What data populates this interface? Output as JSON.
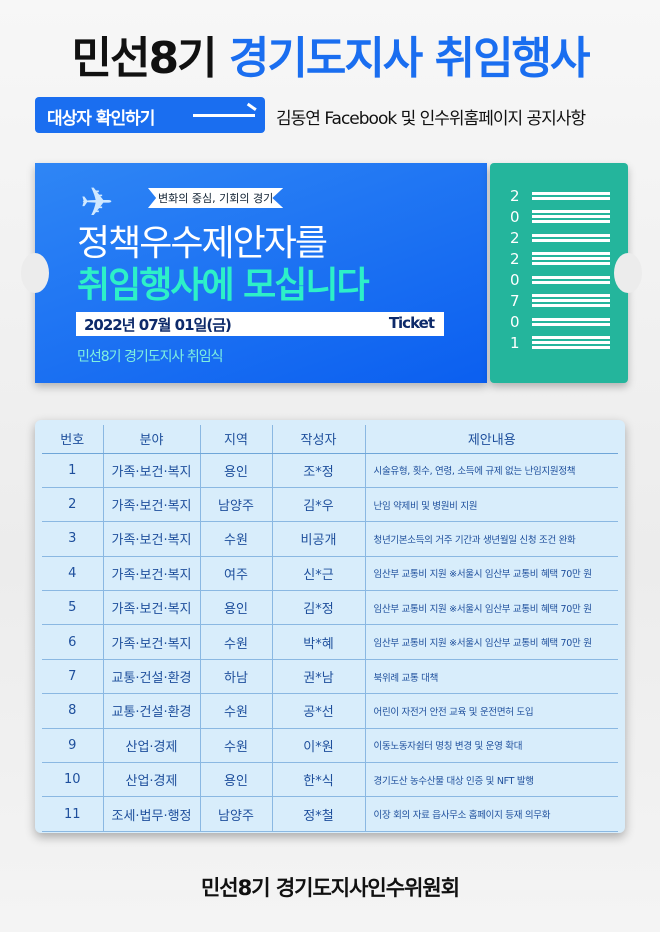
{
  "title": {
    "part1": "민선8기",
    "part2": "경기도지사 취임행사"
  },
  "cta": {
    "label": "대상자 확인하기"
  },
  "notice": "김동연 Facebook 및 인수위홈페이지 공지사항",
  "ticket": {
    "banner": "변화의 중심, 기회의 경기",
    "headline1": "정책우수제안자를",
    "headline2": "취임행사에 모십니다",
    "date": "2022년 07월 01일(금)",
    "ticket_label": "Ticket",
    "subtitle": "민선8기 경기도지사 취임식",
    "stub_digits": [
      "2",
      "0",
      "2",
      "2",
      "0",
      "7",
      "0",
      "1"
    ]
  },
  "table": {
    "headers": [
      "번호",
      "분야",
      "지역",
      "작성자",
      "제안내용"
    ],
    "rows": [
      [
        "1",
        "가족·보건·복지",
        "용인",
        "조*정",
        "시술유형, 횟수, 연령, 소득에 규제 없는 난임지원정책"
      ],
      [
        "2",
        "가족·보건·복지",
        "남양주",
        "김*우",
        "난임 약제비 및 병원비 지원"
      ],
      [
        "3",
        "가족·보건·복지",
        "수원",
        "비공개",
        "청년기본소득의 거주 기간과 생년월일 신청 조건 완화"
      ],
      [
        "4",
        "가족·보건·복지",
        "여주",
        "신*근",
        "임산부 교통비 지원 ※서울시 임산부 교통비 혜택 70만 원"
      ],
      [
        "5",
        "가족·보건·복지",
        "용인",
        "김*정",
        "임산부 교통비 지원 ※서울시 임산부 교통비 혜택 70만 원"
      ],
      [
        "6",
        "가족·보건·복지",
        "수원",
        "박*혜",
        "임산부 교통비 지원 ※서울시 임산부 교통비 혜택 70만 원"
      ],
      [
        "7",
        "교통·건설·환경",
        "하남",
        "권*남",
        "북위례 교통 대책"
      ],
      [
        "8",
        "교통·건설·환경",
        "수원",
        "공*선",
        "어린이 자전거 안전 교육 및 운전면허 도입"
      ],
      [
        "9",
        "산업·경제",
        "수원",
        "이*원",
        "이동노동자쉼터 명칭 변경 및 운영 확대"
      ],
      [
        "10",
        "산업·경제",
        "용인",
        "한*식",
        "경기도산 농수산물 대상 인증 및 NFT 발행"
      ],
      [
        "11",
        "조세·법무·행정",
        "남양주",
        "정*철",
        "이장 회의 자료 읍사무소 홈페이지 등재 의무화"
      ]
    ]
  },
  "footer": "민선8기 경기도지사인수위원회",
  "colors": {
    "brand_blue": "#1a6ef0",
    "teal": "#24b59c",
    "mint": "#2df0c8",
    "panel": "#d8edfb"
  }
}
